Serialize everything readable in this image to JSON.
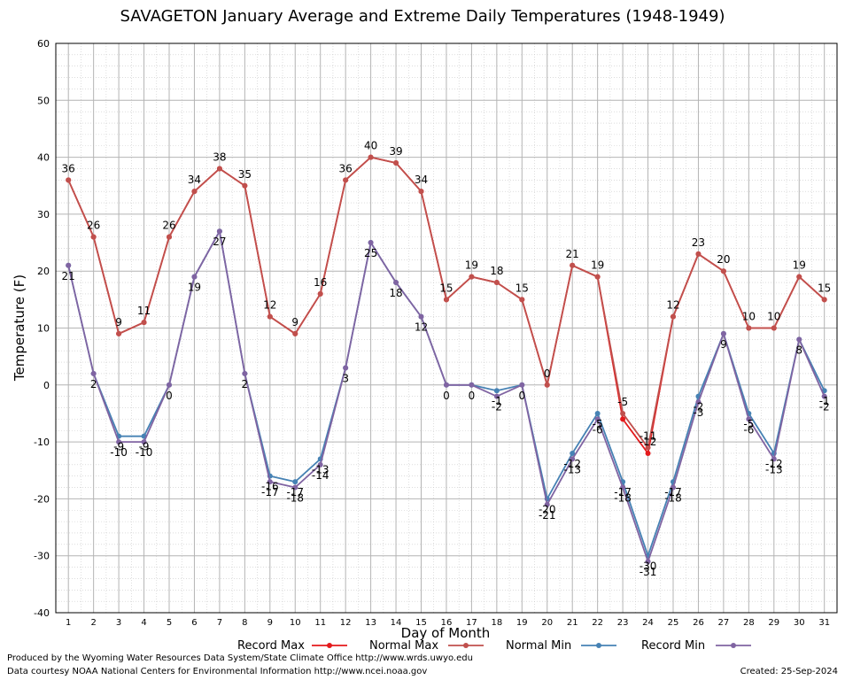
{
  "chart_data": {
    "type": "line",
    "title": "SAVAGETON January Average and Extreme Daily Temperatures (1948-1949)",
    "xlabel": "Day of Month",
    "ylabel": "Temperature (F)",
    "x": [
      1,
      2,
      3,
      4,
      5,
      6,
      7,
      8,
      9,
      10,
      11,
      12,
      13,
      14,
      15,
      16,
      17,
      18,
      19,
      20,
      21,
      22,
      23,
      24,
      25,
      26,
      27,
      28,
      29,
      30,
      31
    ],
    "ylim": [
      -40,
      60
    ],
    "yticks": [
      -40,
      -30,
      -20,
      -10,
      0,
      10,
      20,
      30,
      40,
      50,
      60
    ],
    "grid": true,
    "legend_position": "bottom",
    "series": [
      {
        "name": "Record Max",
        "color": "#e41a1c",
        "values": [
          36,
          26,
          9,
          11,
          26,
          34,
          38,
          35,
          12,
          9,
          16,
          36,
          40,
          39,
          34,
          15,
          19,
          18,
          15,
          0,
          21,
          19,
          -6,
          -12,
          12,
          23,
          20,
          10,
          10,
          19,
          15
        ]
      },
      {
        "name": "Normal Max",
        "color": "#c0504d",
        "values": [
          36,
          26,
          9,
          11,
          26,
          34,
          38,
          35,
          12,
          9,
          16,
          36,
          40,
          39,
          34,
          15,
          19,
          18,
          15,
          0,
          21,
          19,
          -5,
          -11,
          12,
          23,
          20,
          10,
          10,
          19,
          15
        ]
      },
      {
        "name": "Normal Min",
        "color": "#4682b4",
        "values": [
          21,
          2,
          -9,
          -9,
          0,
          19,
          27,
          2,
          -16,
          -17,
          -13,
          3,
          25,
          18,
          12,
          0,
          0,
          -1,
          0,
          -20,
          -12,
          -5,
          -17,
          -30,
          -17,
          -2,
          9,
          -5,
          -12,
          8,
          -1
        ]
      },
      {
        "name": "Record Min",
        "color": "#8064a2",
        "values": [
          21,
          2,
          -10,
          -10,
          0,
          19,
          27,
          2,
          -17,
          -18,
          -14,
          3,
          25,
          18,
          12,
          0,
          0,
          -2,
          0,
          -21,
          -13,
          -6,
          -18,
          -31,
          -18,
          -3,
          9,
          -6,
          -13,
          8,
          -2
        ]
      }
    ],
    "data_labels": [
      {
        "x": 1,
        "y": 36,
        "text": "36"
      },
      {
        "x": 2,
        "y": 26,
        "text": "26"
      },
      {
        "x": 3,
        "y": 9,
        "text": "9"
      },
      {
        "x": 4,
        "y": 11,
        "text": "11"
      },
      {
        "x": 5,
        "y": 26,
        "text": "26"
      },
      {
        "x": 6,
        "y": 34,
        "text": "34"
      },
      {
        "x": 7,
        "y": 38,
        "text": "38"
      },
      {
        "x": 8,
        "y": 35,
        "text": "35"
      },
      {
        "x": 9,
        "y": 12,
        "text": "12"
      },
      {
        "x": 10,
        "y": 9,
        "text": "9"
      },
      {
        "x": 11,
        "y": 16,
        "text": "16"
      },
      {
        "x": 12,
        "y": 36,
        "text": "36"
      },
      {
        "x": 13,
        "y": 40,
        "text": "40"
      },
      {
        "x": 14,
        "y": 39,
        "text": "39"
      },
      {
        "x": 15,
        "y": 34,
        "text": "34"
      },
      {
        "x": 16,
        "y": 15,
        "text": "15"
      },
      {
        "x": 17,
        "y": 19,
        "text": "19"
      },
      {
        "x": 18,
        "y": 18,
        "text": "18"
      },
      {
        "x": 19,
        "y": 15,
        "text": "15"
      },
      {
        "x": 20,
        "y": 0,
        "text": "0"
      },
      {
        "x": 21,
        "y": 21,
        "text": "21"
      },
      {
        "x": 22,
        "y": 19,
        "text": "19"
      },
      {
        "x": 23,
        "y": -5,
        "text": "-5"
      },
      {
        "x": 24,
        "y": -11,
        "text": "-11"
      },
      {
        "x": 24,
        "y": -12,
        "text": "-12"
      },
      {
        "x": 25,
        "y": 12,
        "text": "12"
      },
      {
        "x": 26,
        "y": 23,
        "text": "23"
      },
      {
        "x": 27,
        "y": 20,
        "text": "20"
      },
      {
        "x": 28,
        "y": 10,
        "text": "10"
      },
      {
        "x": 29,
        "y": 10,
        "text": "10"
      },
      {
        "x": 30,
        "y": 19,
        "text": "19"
      },
      {
        "x": 31,
        "y": 15,
        "text": "15"
      },
      {
        "x": 1,
        "y": 21,
        "text": "21"
      },
      {
        "x": 2,
        "y": 2,
        "text": "2"
      },
      {
        "x": 3,
        "y": -9,
        "text": "-9"
      },
      {
        "x": 3,
        "y": -10,
        "text": "-10"
      },
      {
        "x": 4,
        "y": -9,
        "text": "-9"
      },
      {
        "x": 4,
        "y": -10,
        "text": "-10"
      },
      {
        "x": 5,
        "y": 0,
        "text": "0"
      },
      {
        "x": 6,
        "y": 19,
        "text": "19"
      },
      {
        "x": 7,
        "y": 27,
        "text": "27"
      },
      {
        "x": 8,
        "y": 2,
        "text": "2"
      },
      {
        "x": 9,
        "y": -16,
        "text": "-16"
      },
      {
        "x": 9,
        "y": -17,
        "text": "-17"
      },
      {
        "x": 10,
        "y": -17,
        "text": "-17"
      },
      {
        "x": 10,
        "y": -18,
        "text": "-18"
      },
      {
        "x": 11,
        "y": -13,
        "text": "-13"
      },
      {
        "x": 11,
        "y": -14,
        "text": "-14"
      },
      {
        "x": 12,
        "y": 3,
        "text": "3"
      },
      {
        "x": 13,
        "y": 25,
        "text": "25"
      },
      {
        "x": 14,
        "y": 18,
        "text": "18"
      },
      {
        "x": 15,
        "y": 12,
        "text": "12"
      },
      {
        "x": 16,
        "y": 0,
        "text": "0"
      },
      {
        "x": 17,
        "y": 0,
        "text": "0"
      },
      {
        "x": 18,
        "y": -1,
        "text": "-1"
      },
      {
        "x": 18,
        "y": -2,
        "text": "-2"
      },
      {
        "x": 19,
        "y": 0,
        "text": "0"
      },
      {
        "x": 20,
        "y": -20,
        "text": "-20"
      },
      {
        "x": 20,
        "y": -21,
        "text": "-21"
      },
      {
        "x": 21,
        "y": -12,
        "text": "-12"
      },
      {
        "x": 21,
        "y": -13,
        "text": "-13"
      },
      {
        "x": 22,
        "y": -5,
        "text": "-5"
      },
      {
        "x": 22,
        "y": -6,
        "text": "-6"
      },
      {
        "x": 23,
        "y": -17,
        "text": "-17"
      },
      {
        "x": 23,
        "y": -18,
        "text": "-18"
      },
      {
        "x": 24,
        "y": -30,
        "text": "-30"
      },
      {
        "x": 24,
        "y": -31,
        "text": "-31"
      },
      {
        "x": 25,
        "y": -17,
        "text": "-17"
      },
      {
        "x": 25,
        "y": -18,
        "text": "-18"
      },
      {
        "x": 26,
        "y": -2,
        "text": "-2"
      },
      {
        "x": 26,
        "y": -3,
        "text": "-3"
      },
      {
        "x": 27,
        "y": 9,
        "text": "9"
      },
      {
        "x": 28,
        "y": -5,
        "text": "-5"
      },
      {
        "x": 28,
        "y": -6,
        "text": "-6"
      },
      {
        "x": 29,
        "y": -12,
        "text": "-12"
      },
      {
        "x": 29,
        "y": -13,
        "text": "-13"
      },
      {
        "x": 30,
        "y": 8,
        "text": "8"
      },
      {
        "x": 31,
        "y": -1,
        "text": "-1"
      },
      {
        "x": 31,
        "y": -2,
        "text": "-2"
      }
    ]
  },
  "footer": {
    "produced_by": "Produced by the Wyoming Water Resources Data System/State Climate Office http://www.wrds.uwyo.edu",
    "courtesy": "Data courtesy NOAA National Centers for Environmental Information http://www.ncei.noaa.gov",
    "created": "Created:  25-Sep-2024"
  }
}
